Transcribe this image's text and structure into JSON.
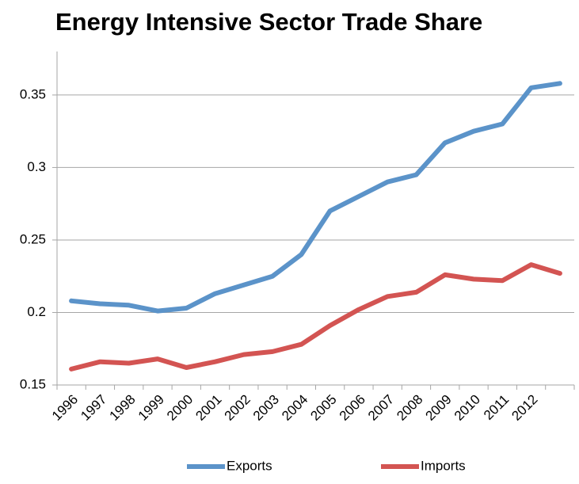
{
  "chart_data": {
    "type": "line",
    "title": "Energy Intensive Sector Trade Share",
    "categories": [
      "1996",
      "1997",
      "1998",
      "1999",
      "2000",
      "2001",
      "2002",
      "2003",
      "2004",
      "2005",
      "2006",
      "2007",
      "2008",
      "2009",
      "2010",
      "2011",
      "2012",
      null
    ],
    "series": [
      {
        "name": "Exports",
        "color": "#5b93c9",
        "values": [
          0.208,
          0.206,
          0.205,
          0.201,
          0.203,
          0.213,
          0.219,
          0.225,
          0.24,
          0.27,
          0.28,
          0.29,
          0.295,
          0.317,
          0.325,
          0.33,
          0.355,
          0.358
        ]
      },
      {
        "name": "Imports",
        "color": "#d35452",
        "values": [
          0.161,
          0.166,
          0.165,
          0.168,
          0.162,
          0.166,
          0.171,
          0.173,
          0.178,
          0.191,
          0.202,
          0.211,
          0.214,
          0.226,
          0.223,
          0.222,
          0.233,
          0.227
        ]
      }
    ],
    "ylim": [
      0.15,
      0.38
    ],
    "yticks": [
      0.15,
      0.2,
      0.25,
      0.3,
      0.35
    ],
    "grid": true,
    "legend": "bottom"
  }
}
